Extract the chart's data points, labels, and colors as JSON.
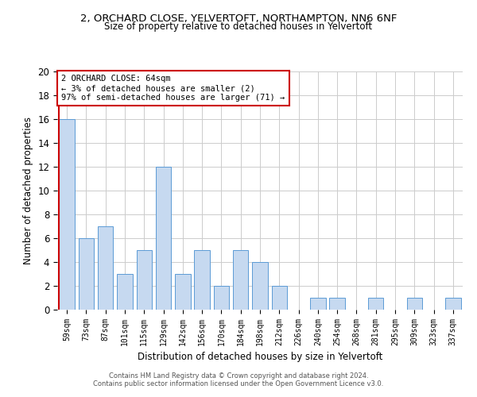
{
  "title_line1": "2, ORCHARD CLOSE, YELVERTOFT, NORTHAMPTON, NN6 6NF",
  "title_line2": "Size of property relative to detached houses in Yelvertoft",
  "xlabel": "Distribution of detached houses by size in Yelvertoft",
  "ylabel": "Number of detached properties",
  "categories": [
    "59sqm",
    "73sqm",
    "87sqm",
    "101sqm",
    "115sqm",
    "129sqm",
    "142sqm",
    "156sqm",
    "170sqm",
    "184sqm",
    "198sqm",
    "212sqm",
    "226sqm",
    "240sqm",
    "254sqm",
    "268sqm",
    "281sqm",
    "295sqm",
    "309sqm",
    "323sqm",
    "337sqm"
  ],
  "values": [
    16,
    6,
    7,
    3,
    5,
    12,
    3,
    5,
    2,
    5,
    4,
    2,
    0,
    1,
    1,
    0,
    1,
    0,
    1,
    0,
    1
  ],
  "bar_color": "#c6d9f0",
  "bar_edge_color": "#5b9bd5",
  "annotation_text": "2 ORCHARD CLOSE: 64sqm\n← 3% of detached houses are smaller (2)\n97% of semi-detached houses are larger (71) →",
  "annotation_box_color": "#ffffff",
  "annotation_border_color": "#cc0000",
  "marker_line_color": "#cc0000",
  "marker_bar_index": 0,
  "ylim": [
    0,
    20
  ],
  "yticks": [
    0,
    2,
    4,
    6,
    8,
    10,
    12,
    14,
    16,
    18,
    20
  ],
  "grid_color": "#cccccc",
  "background_color": "#ffffff",
  "footer_line1": "Contains HM Land Registry data © Crown copyright and database right 2024.",
  "footer_line2": "Contains public sector information licensed under the Open Government Licence v3.0."
}
